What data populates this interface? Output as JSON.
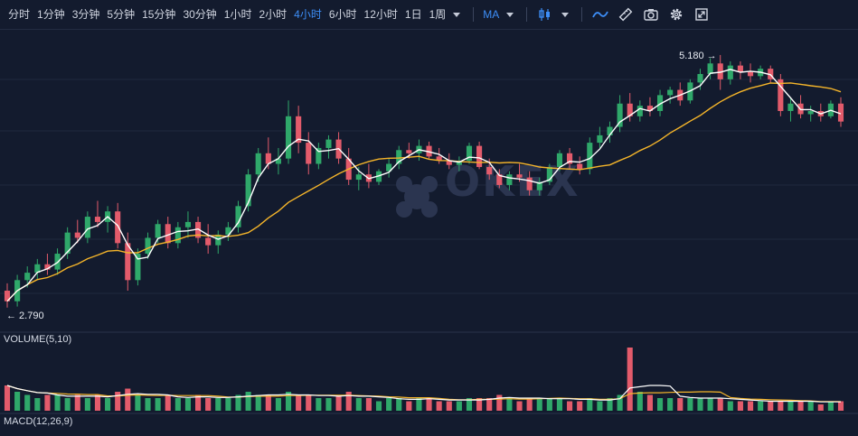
{
  "toolbar": {
    "intervals": [
      "分时",
      "1分钟",
      "3分钟",
      "5分钟",
      "15分钟",
      "30分钟",
      "1小时",
      "2小时",
      "4小时",
      "6小时",
      "12小时",
      "1日",
      "1周"
    ],
    "active_interval": "4小时",
    "indicator": "MA",
    "icons": [
      "candlestick-icon",
      "line-chart-icon",
      "draw-ruler-icon",
      "camera-icon",
      "gear-icon",
      "fullscreen-icon"
    ]
  },
  "colors": {
    "background": "#131b2e",
    "up": "#2fa86a",
    "down": "#e35b6b",
    "ma_short": "#ffffff",
    "ma_long": "#f5b52a",
    "accent": "#3d8ef7"
  },
  "watermark": "OKEX",
  "chart_data": {
    "type": "candlestick",
    "price_range": [
      2.6,
      5.35
    ],
    "annotations": {
      "high": "5.180",
      "low": "2.790",
      "high_label": "5.180 →",
      "low_label": "← 2.790"
    },
    "ohlc": [
      [
        2.95,
        3.02,
        2.79,
        2.85
      ],
      [
        2.85,
        3.1,
        2.8,
        3.05
      ],
      [
        3.05,
        3.18,
        2.98,
        3.12
      ],
      [
        3.12,
        3.25,
        3.05,
        3.2
      ],
      [
        3.2,
        3.3,
        3.1,
        3.15
      ],
      [
        3.15,
        3.35,
        3.1,
        3.3
      ],
      [
        3.3,
        3.55,
        3.25,
        3.5
      ],
      [
        3.5,
        3.62,
        3.4,
        3.45
      ],
      [
        3.45,
        3.7,
        3.4,
        3.65
      ],
      [
        3.65,
        3.8,
        3.55,
        3.6
      ],
      [
        3.6,
        3.75,
        3.5,
        3.7
      ],
      [
        3.7,
        3.78,
        3.35,
        3.4
      ],
      [
        3.4,
        3.5,
        2.95,
        3.05
      ],
      [
        3.05,
        3.35,
        3.0,
        3.3
      ],
      [
        3.3,
        3.5,
        3.25,
        3.45
      ],
      [
        3.45,
        3.62,
        3.4,
        3.58
      ],
      [
        3.58,
        3.65,
        3.35,
        3.4
      ],
      [
        3.4,
        3.6,
        3.35,
        3.55
      ],
      [
        3.55,
        3.7,
        3.45,
        3.6
      ],
      [
        3.6,
        3.65,
        3.4,
        3.45
      ],
      [
        3.45,
        3.58,
        3.3,
        3.38
      ],
      [
        3.38,
        3.52,
        3.3,
        3.48
      ],
      [
        3.48,
        3.6,
        3.42,
        3.55
      ],
      [
        3.55,
        3.8,
        3.5,
        3.75
      ],
      [
        3.75,
        4.1,
        3.7,
        4.05
      ],
      [
        4.05,
        4.3,
        3.98,
        4.25
      ],
      [
        4.25,
        4.4,
        4.1,
        4.15
      ],
      [
        4.15,
        4.3,
        4.05,
        4.2
      ],
      [
        4.2,
        4.75,
        4.15,
        4.6
      ],
      [
        4.6,
        4.7,
        4.25,
        4.35
      ],
      [
        4.35,
        4.45,
        4.05,
        4.15
      ],
      [
        4.15,
        4.35,
        4.1,
        4.3
      ],
      [
        4.3,
        4.42,
        4.2,
        4.38
      ],
      [
        4.38,
        4.45,
        4.15,
        4.2
      ],
      [
        4.2,
        4.3,
        3.95,
        4.0
      ],
      [
        4.0,
        4.12,
        3.9,
        4.05
      ],
      [
        4.05,
        4.15,
        3.92,
        3.98
      ],
      [
        3.98,
        4.1,
        3.95,
        4.08
      ],
      [
        4.08,
        4.2,
        4.02,
        4.15
      ],
      [
        4.15,
        4.32,
        4.1,
        4.28
      ],
      [
        4.28,
        4.35,
        4.2,
        4.25
      ],
      [
        4.25,
        4.38,
        4.18,
        4.32
      ],
      [
        4.32,
        4.36,
        4.2,
        4.22
      ],
      [
        4.22,
        4.3,
        4.15,
        4.18
      ],
      [
        4.18,
        4.25,
        4.1,
        4.14
      ],
      [
        4.14,
        4.22,
        4.08,
        4.18
      ],
      [
        4.18,
        4.35,
        4.15,
        4.32
      ],
      [
        4.32,
        4.36,
        4.1,
        4.12
      ],
      [
        4.12,
        4.2,
        4.0,
        4.05
      ],
      [
        4.05,
        4.1,
        3.92,
        3.95
      ],
      [
        3.95,
        4.08,
        3.9,
        4.05
      ],
      [
        4.05,
        4.15,
        3.98,
        4.02
      ],
      [
        4.02,
        4.08,
        3.85,
        3.9
      ],
      [
        3.9,
        4.02,
        3.85,
        3.98
      ],
      [
        3.98,
        4.15,
        3.95,
        4.12
      ],
      [
        4.12,
        4.28,
        4.08,
        4.25
      ],
      [
        4.25,
        4.3,
        4.1,
        4.15
      ],
      [
        4.15,
        4.22,
        4.05,
        4.1
      ],
      [
        4.1,
        4.4,
        4.05,
        4.35
      ],
      [
        4.35,
        4.5,
        4.3,
        4.42
      ],
      [
        4.42,
        4.55,
        4.35,
        4.5
      ],
      [
        4.5,
        4.8,
        4.45,
        4.72
      ],
      [
        4.72,
        4.82,
        4.55,
        4.6
      ],
      [
        4.6,
        4.75,
        4.55,
        4.7
      ],
      [
        4.7,
        4.78,
        4.6,
        4.65
      ],
      [
        4.65,
        4.85,
        4.6,
        4.8
      ],
      [
        4.8,
        4.88,
        4.72,
        4.85
      ],
      [
        4.85,
        4.92,
        4.7,
        4.75
      ],
      [
        4.75,
        4.95,
        4.72,
        4.92
      ],
      [
        4.92,
        5.05,
        4.85,
        5.0
      ],
      [
        5.0,
        5.15,
        4.95,
        5.1
      ],
      [
        5.1,
        5.18,
        4.85,
        4.95
      ],
      [
        4.95,
        5.12,
        4.9,
        5.08
      ],
      [
        5.08,
        5.12,
        4.95,
        5.02
      ],
      [
        5.02,
        5.1,
        4.92,
        4.98
      ],
      [
        4.98,
        5.08,
        4.95,
        5.05
      ],
      [
        5.05,
        5.08,
        4.92,
        4.95
      ],
      [
        4.95,
        5.0,
        4.6,
        4.65
      ],
      [
        4.65,
        4.78,
        4.55,
        4.72
      ],
      [
        4.72,
        4.8,
        4.58,
        4.62
      ],
      [
        4.62,
        4.7,
        4.55,
        4.65
      ],
      [
        4.65,
        4.72,
        4.55,
        4.6
      ],
      [
        4.6,
        4.75,
        4.58,
        4.72
      ],
      [
        4.72,
        4.78,
        4.5,
        4.55
      ]
    ],
    "volume_panel": "VOLUME(5,10)",
    "volume": [
      8,
      6,
      5,
      4,
      5,
      5,
      4,
      5,
      4,
      5,
      4,
      6,
      7,
      5,
      4,
      4,
      5,
      4,
      4,
      5,
      4,
      4,
      4,
      5,
      6,
      5,
      5,
      4,
      6,
      5,
      5,
      4,
      4,
      5,
      6,
      4,
      4,
      3,
      4,
      4,
      3,
      4,
      4,
      3,
      3,
      3,
      4,
      4,
      4,
      5,
      4,
      3,
      4,
      4,
      4,
      4,
      3,
      3,
      4,
      3,
      4,
      5,
      20,
      6,
      5,
      4,
      4,
      4,
      4,
      4,
      4,
      4,
      3,
      3,
      3,
      3,
      3,
      3,
      3,
      3,
      3,
      2,
      3,
      3
    ],
    "macd_panel": "MACD(12,26,9)"
  }
}
